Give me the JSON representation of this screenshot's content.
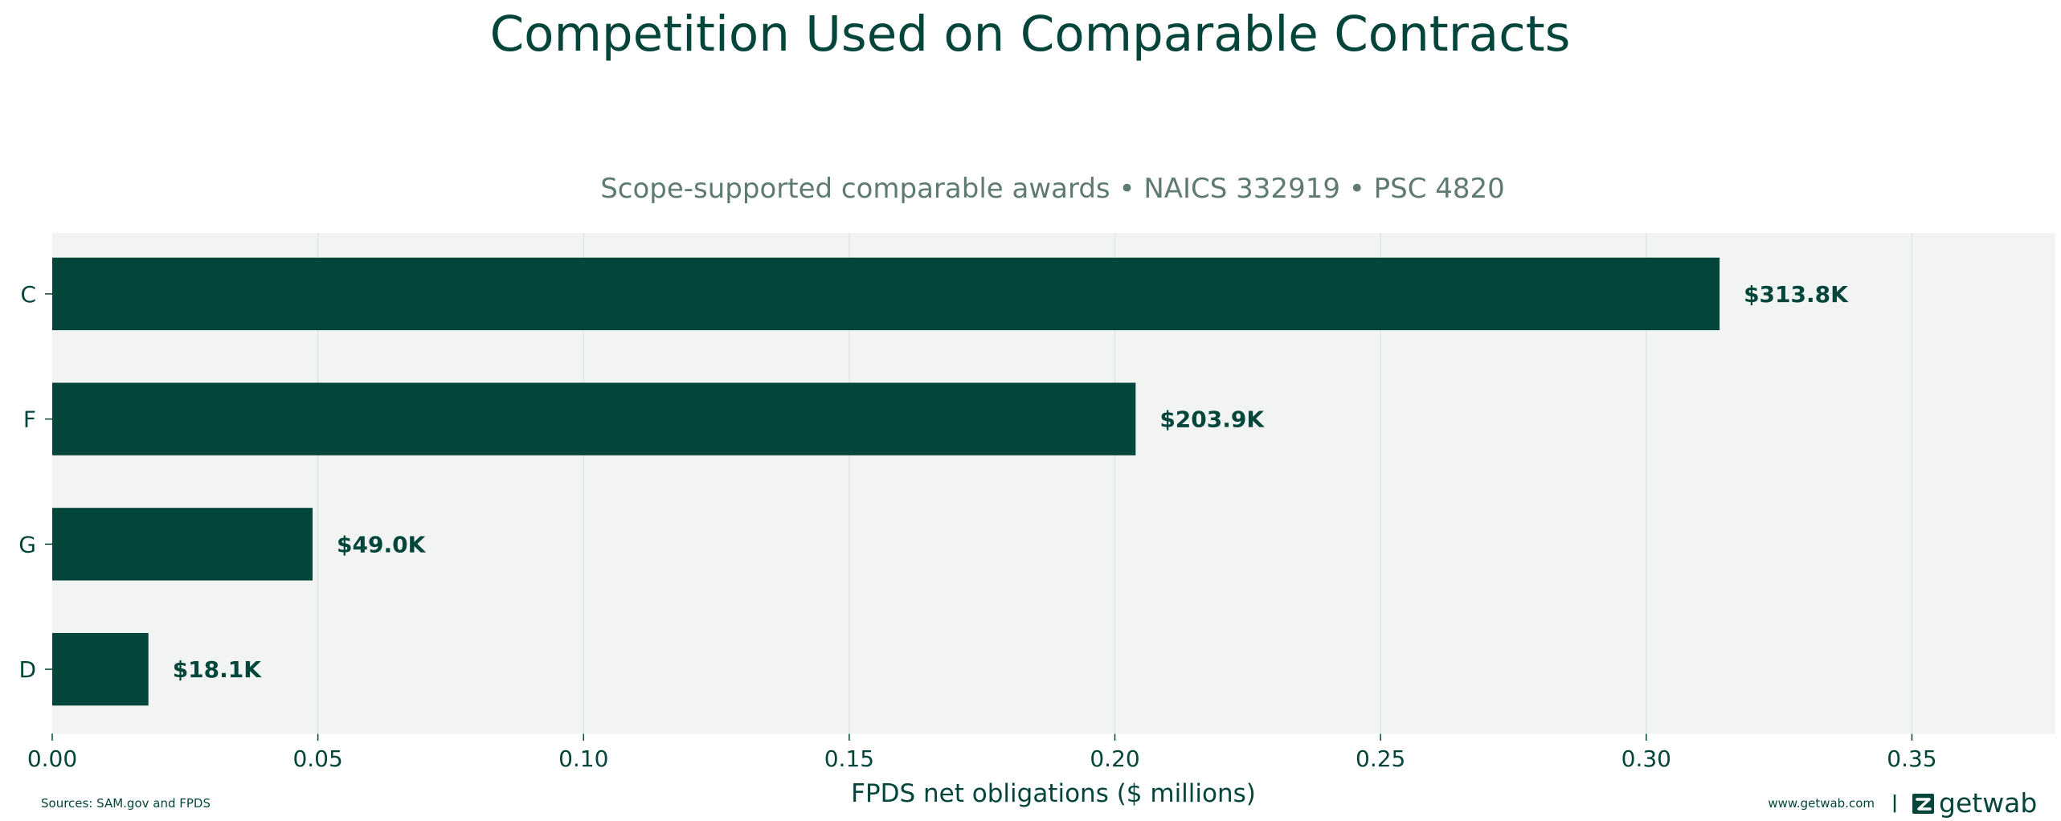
{
  "colors": {
    "accent": "#03453a",
    "plot_background": "#f2f4f3",
    "grid": "#dfe7e4",
    "subtitle": "#5f7a73"
  },
  "chart_data": {
    "type": "bar",
    "orientation": "horizontal",
    "title": "Competition Used on Comparable Contracts",
    "subtitle": "Scope-supported comparable awards • NAICS 332919 • PSC 4820",
    "xlabel": "FPDS net obligations ($ millions)",
    "ylabel": "",
    "categories": [
      "C",
      "F",
      "G",
      "D"
    ],
    "values": [
      0.3138,
      0.2039,
      0.049,
      0.0181
    ],
    "data_labels": [
      "$313.8K",
      "$203.9K",
      "$49.0K",
      "$18.1K"
    ],
    "xlim": [
      0,
      0.377
    ],
    "xticks": [
      0.0,
      0.05,
      0.1,
      0.15,
      0.2,
      0.25,
      0.3,
      0.35
    ],
    "xtick_labels": [
      "0.00",
      "0.05",
      "0.10",
      "0.15",
      "0.20",
      "0.25",
      "0.30",
      "0.35"
    ],
    "grid": "vertical",
    "legend": "none"
  },
  "footer": {
    "source": "Sources: SAM.gov and FPDS",
    "website": "www.getwab.com",
    "separator": "|",
    "brand_name": "getwab"
  },
  "icons": {
    "brand_logo": "getwab-logo-icon"
  }
}
